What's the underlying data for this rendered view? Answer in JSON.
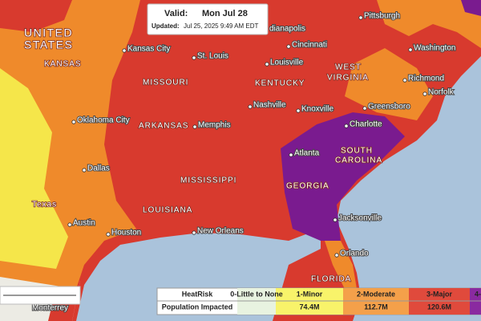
{
  "info": {
    "valid_label": "Valid:",
    "valid_date": "Mon Jul 28",
    "updated_label": "Updated:",
    "updated": "Jul 25, 2025 9:49 AM EDT"
  },
  "cities": [
    "Pittsburgh",
    "Washington",
    "Richmond",
    "Norfolk",
    "Greensboro",
    "Charlotte",
    "Atlanta",
    "Jacksonville",
    "Orlando",
    "New Orleans",
    "Houston",
    "Austin",
    "Dallas",
    "Oklahoma City",
    "Kansas City",
    "St. Louis",
    "Memphis",
    "Nashville",
    "Knoxville",
    "Louisville",
    "Cincinnati",
    "dianapolis",
    "Monterrey"
  ],
  "regions": [
    [
      "UNITED",
      "STATES"
    ],
    [
      "KANSAS"
    ],
    [
      "MISSOURI"
    ],
    [
      "KENTUCKY"
    ],
    [
      "WEST",
      "VIRGINIA"
    ],
    [
      "ARKANSAS"
    ],
    [
      "MISSISSIPPI"
    ],
    [
      "LOUISIANA"
    ],
    [
      "Texas"
    ],
    [
      "GEORGIA"
    ],
    [
      "SOUTH",
      "CAROLINA"
    ],
    [
      "FLORIDA"
    ]
  ],
  "legend": {
    "header": "HeatRisk",
    "levels": [
      "0-Little to None",
      "1-Minor",
      "2-Moderate",
      "3-Major",
      "4-"
    ],
    "population_label": "Population Impacted",
    "population": [
      "74.4M",
      "112.7M",
      "120.6M"
    ]
  }
}
